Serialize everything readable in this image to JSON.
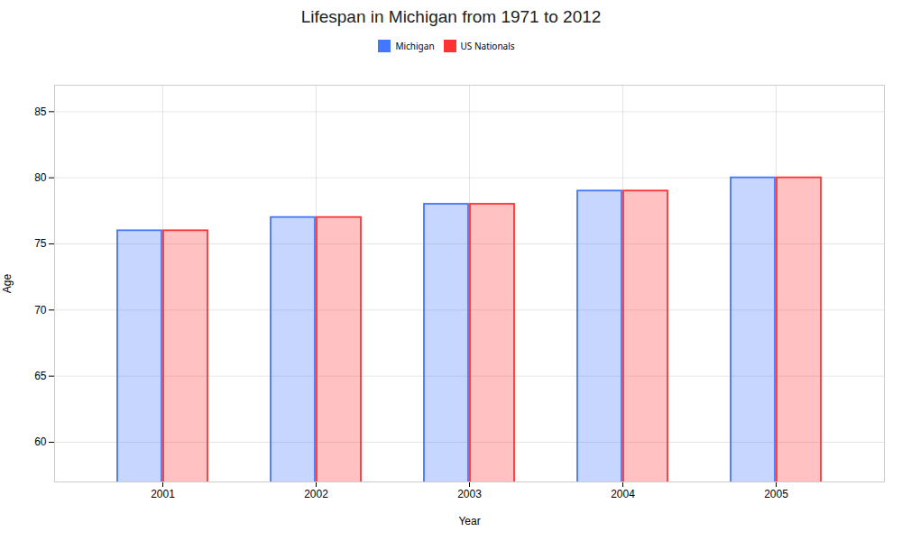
{
  "chart_data": {
    "type": "bar",
    "title": "Lifespan in Michigan from 1971 to 2012",
    "xlabel": "Year",
    "ylabel": "Age",
    "categories": [
      "2001",
      "2002",
      "2003",
      "2004",
      "2005"
    ],
    "series": [
      {
        "name": "Michigan",
        "color": "#4477ff",
        "values": [
          76,
          77,
          78,
          79,
          80
        ]
      },
      {
        "name": "US Nationals",
        "color": "#ff3333",
        "values": [
          76,
          77,
          78,
          79,
          80
        ]
      }
    ],
    "ylim": [
      57,
      87
    ],
    "yticks": [
      60,
      65,
      70,
      75,
      80,
      85
    ],
    "grid": true,
    "legend": "top"
  }
}
